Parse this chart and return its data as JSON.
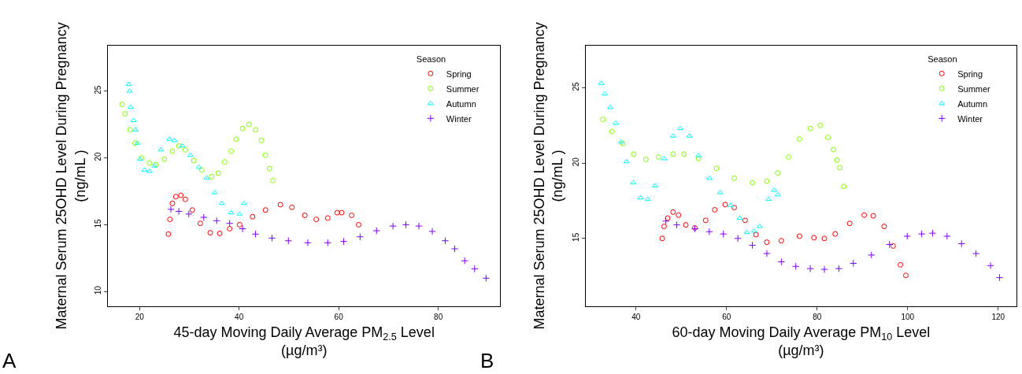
{
  "chart_data": [
    {
      "type": "scatter",
      "xlabel": "45-day Moving Daily Average PM$_{2.5}$ Level\n(µg/m³)",
      "ylabel": "Maternal Serum 25OHD Level During Pregnancy\n(ng/mL )",
      "annotations": [
        "A"
      ],
      "legend": "top right",
      "legend_title": "Season",
      "xlim": [
        13.7,
        92.4
      ],
      "ylim": [
        8.9,
        28.4
      ],
      "xticks": [
        20,
        40,
        60,
        80
      ],
      "yticks": [
        10,
        15,
        20,
        25
      ],
      "series": [
        {
          "name": "Spring",
          "color": "#ff0000",
          "marker": "circle",
          "x": [
            25.8,
            26.1,
            26.6,
            27.3,
            28.3,
            29.2,
            30.6,
            32.2,
            34.2,
            36.1,
            38.1,
            40.1,
            42.7,
            45.3,
            48.3,
            50.6,
            53.2,
            55.5,
            57.8,
            59.7,
            60.6,
            62.6,
            64.0
          ],
          "values": [
            14.3,
            15.4,
            16.6,
            17.1,
            17.2,
            16.9,
            16.1,
            15.1,
            14.4,
            14.35,
            14.7,
            15.0,
            15.6,
            16.1,
            16.5,
            16.3,
            15.7,
            15.4,
            15.5,
            15.9,
            15.9,
            15.7,
            15.0
          ]
        },
        {
          "name": "Summer",
          "color": "#80ff00",
          "marker": "circle",
          "x": [
            16.5,
            17.1,
            18.1,
            19.1,
            20.4,
            22.0,
            23.3,
            25.0,
            26.6,
            27.9,
            29.2,
            30.9,
            32.5,
            34.5,
            35.8,
            37.1,
            38.4,
            39.4,
            40.7,
            42.0,
            43.3,
            44.5,
            45.3,
            46.1,
            46.8
          ],
          "values": [
            24.0,
            23.3,
            22.1,
            21.1,
            20.0,
            19.6,
            19.5,
            19.9,
            20.5,
            20.9,
            20.6,
            19.8,
            19.1,
            18.6,
            18.85,
            19.7,
            20.5,
            21.4,
            22.2,
            22.5,
            22.1,
            21.3,
            20.2,
            19.2,
            18.3
          ]
        },
        {
          "name": "Autumn",
          "color": "#00ffff",
          "marker": "triangle",
          "x": [
            17.8,
            18.0,
            18.2,
            18.8,
            19.2,
            19.6,
            20.1,
            21.0,
            22.0,
            23.0,
            24.3,
            26.0,
            27.0,
            28.6,
            30.2,
            31.9,
            33.5,
            35.1,
            36.5,
            38.4,
            40.1,
            41.0
          ],
          "values": [
            25.5,
            25.0,
            23.8,
            22.8,
            22.1,
            21.1,
            19.9,
            19.1,
            19.0,
            19.4,
            20.6,
            21.4,
            21.3,
            20.9,
            20.2,
            19.3,
            18.5,
            17.4,
            16.6,
            15.9,
            15.8,
            16.6
          ]
        },
        {
          "name": "Winter",
          "color": "#8000ff",
          "marker": "cross",
          "x": [
            26.3,
            27.9,
            29.9,
            32.9,
            35.5,
            38.1,
            40.7,
            43.3,
            46.6,
            49.9,
            53.8,
            57.8,
            61.0,
            64.3,
            67.6,
            70.9,
            73.5,
            76.1,
            78.8,
            81.4,
            83.3,
            85.3,
            87.3,
            89.6
          ],
          "values": [
            16.15,
            16.0,
            15.8,
            15.55,
            15.3,
            15.1,
            14.7,
            14.3,
            14.0,
            13.8,
            13.65,
            13.65,
            13.75,
            14.1,
            14.55,
            14.9,
            15.0,
            14.9,
            14.5,
            13.8,
            13.2,
            12.3,
            11.7,
            11.0
          ]
        }
      ]
    },
    {
      "type": "scatter",
      "xlabel": "60-day Moving Daily Average PM$_{10}$ Level\n(µg/m³)",
      "ylabel": "Maternal Serum 25OHD Level During Pregnancy\n(ng/mL )",
      "annotations": [
        "B"
      ],
      "legend": "top right",
      "legend_title": "Season",
      "xlim": [
        28.9,
        124.0
      ],
      "ylim": [
        10.5,
        27.8
      ],
      "xticks": [
        40,
        60,
        80,
        100,
        120
      ],
      "yticks": [
        15,
        20,
        25
      ],
      "series": [
        {
          "name": "Spring",
          "color": "#ff0000",
          "marker": "circle",
          "x": [
            45.8,
            46.2,
            47.0,
            48.2,
            49.4,
            51.0,
            53.0,
            55.4,
            57.4,
            59.7,
            61.7,
            64.1,
            66.5,
            68.9,
            72.1,
            76.1,
            79.3,
            81.6,
            84.0,
            87.2,
            90.4,
            92.4,
            94.8,
            96.8,
            98.4,
            99.6
          ],
          "values": [
            15.0,
            15.8,
            16.35,
            16.75,
            16.55,
            15.9,
            15.7,
            16.2,
            16.9,
            17.25,
            17.05,
            16.2,
            15.25,
            14.75,
            14.85,
            15.15,
            15.05,
            15.0,
            15.3,
            16.0,
            16.55,
            16.5,
            15.8,
            14.5,
            13.25,
            12.55
          ]
        },
        {
          "name": "Summer",
          "color": "#80ff00",
          "marker": "circle",
          "x": [
            32.7,
            34.7,
            37.1,
            39.5,
            42.2,
            45.0,
            48.2,
            50.6,
            53.8,
            57.8,
            61.7,
            65.7,
            68.9,
            71.3,
            73.7,
            76.1,
            78.5,
            80.7,
            82.4,
            83.6,
            84.4,
            85.0,
            85.9
          ],
          "values": [
            22.9,
            22.1,
            21.3,
            20.6,
            20.25,
            20.4,
            20.6,
            20.6,
            20.3,
            19.65,
            19.0,
            18.7,
            18.8,
            19.35,
            20.4,
            21.6,
            22.3,
            22.5,
            21.7,
            20.9,
            20.2,
            19.7,
            18.45
          ]
        },
        {
          "name": "Autumn",
          "color": "#00ffff",
          "marker": "triangle",
          "x": [
            32.3,
            33.1,
            34.3,
            35.5,
            36.7,
            37.9,
            39.4,
            41.0,
            42.6,
            44.2,
            46.2,
            48.2,
            49.8,
            51.8,
            53.8,
            56.2,
            58.6,
            60.9,
            62.9,
            64.5,
            66.1,
            67.3,
            69.3,
            70.5,
            71.3
          ],
          "values": [
            25.3,
            24.6,
            23.7,
            22.65,
            21.4,
            20.1,
            18.7,
            17.7,
            17.6,
            18.5,
            20.3,
            21.8,
            22.3,
            21.8,
            20.5,
            19.0,
            18.05,
            17.2,
            16.35,
            15.4,
            15.5,
            15.8,
            17.6,
            18.2,
            17.9
          ]
        },
        {
          "name": "Winter",
          "color": "#8000ff",
          "marker": "cross",
          "x": [
            46.6,
            49.0,
            53.0,
            56.2,
            59.3,
            62.5,
            65.7,
            68.9,
            72.1,
            75.3,
            78.5,
            81.6,
            84.8,
            88.0,
            92.0,
            96.0,
            99.9,
            103.1,
            105.5,
            108.7,
            111.9,
            115.1,
            118.3,
            120.3
          ],
          "values": [
            16.15,
            15.9,
            15.65,
            15.45,
            15.3,
            15.0,
            14.55,
            14.0,
            13.45,
            13.15,
            13.0,
            12.95,
            13.0,
            13.35,
            13.9,
            14.6,
            15.15,
            15.3,
            15.35,
            15.15,
            14.65,
            14.0,
            13.2,
            12.4
          ]
        }
      ]
    }
  ]
}
